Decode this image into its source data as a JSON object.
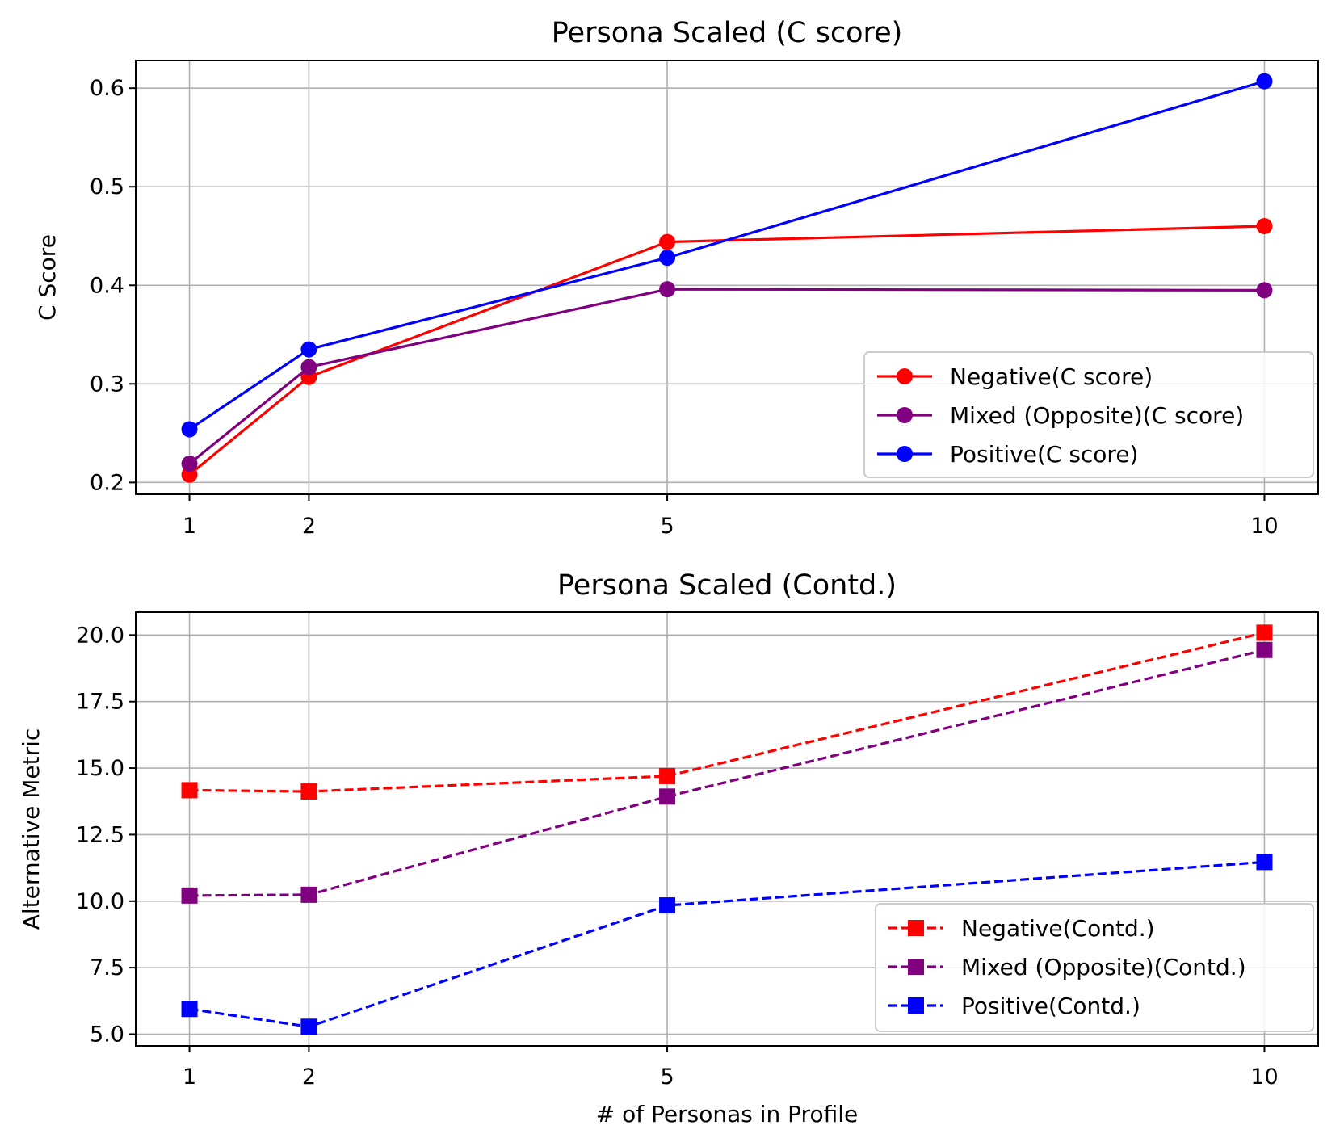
{
  "chart_data": [
    {
      "type": "line",
      "title": "Persona Scaled (C score)",
      "xlabel": "",
      "ylabel": "C Score",
      "x": [
        1,
        2,
        5,
        10
      ],
      "xticks": [
        "1",
        "2",
        "5",
        "10"
      ],
      "xlim": [
        0.55,
        10.45
      ],
      "yticks": [
        "0.2",
        "0.3",
        "0.4",
        "0.5",
        "0.6"
      ],
      "ytick_values": [
        0.2,
        0.3,
        0.4,
        0.5,
        0.6
      ],
      "ylim": [
        0.188,
        0.628
      ],
      "grid": true,
      "legend_position": "lower-right",
      "marker": "circle",
      "linestyle": "solid",
      "series": [
        {
          "name": "Negative(C score)",
          "color": "#ff0000",
          "values": [
            0.208,
            0.307,
            0.444,
            0.46
          ]
        },
        {
          "name": "Mixed (Opposite)(C score)",
          "color": "#800080",
          "values": [
            0.219,
            0.317,
            0.396,
            0.395
          ]
        },
        {
          "name": "Positive(C score)",
          "color": "#0000ff",
          "values": [
            0.254,
            0.335,
            0.428,
            0.607
          ]
        }
      ]
    },
    {
      "type": "line",
      "title": "Persona Scaled (Contd.)",
      "xlabel": "# of Personas in Profile",
      "ylabel": "Alternative Metric",
      "x": [
        1,
        2,
        5,
        10
      ],
      "xticks": [
        "1",
        "2",
        "5",
        "10"
      ],
      "xlim": [
        0.55,
        10.45
      ],
      "yticks": [
        "5.0",
        "7.5",
        "10.0",
        "12.5",
        "15.0",
        "17.5",
        "20.0"
      ],
      "ytick_values": [
        5.0,
        7.5,
        10.0,
        12.5,
        15.0,
        17.5,
        20.0
      ],
      "ylim": [
        4.56,
        20.86
      ],
      "grid": true,
      "legend_position": "lower-right",
      "marker": "square",
      "linestyle": "dashed",
      "series": [
        {
          "name": "Negative(Contd.)",
          "color": "#ff0000",
          "values": [
            14.17,
            14.12,
            14.7,
            20.09
          ]
        },
        {
          "name": "Mixed (Opposite)(Contd.)",
          "color": "#800080",
          "values": [
            10.21,
            10.24,
            13.93,
            19.44
          ]
        },
        {
          "name": "Positive(Contd.)",
          "color": "#0000ff",
          "values": [
            5.95,
            5.28,
            9.84,
            11.47
          ]
        }
      ]
    }
  ]
}
